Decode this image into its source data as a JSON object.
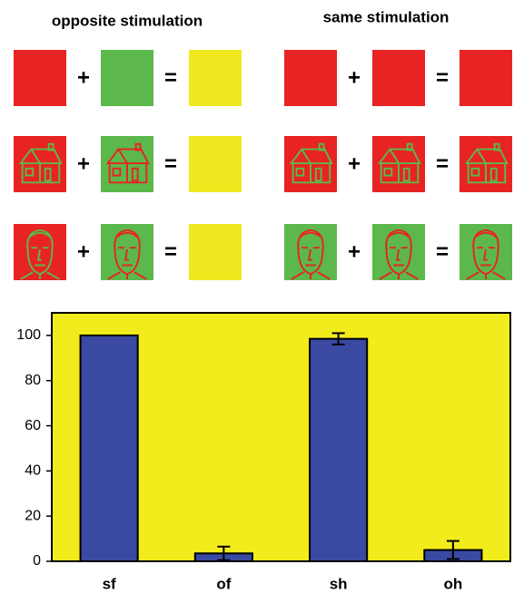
{
  "diagram": {
    "titles": [
      "opposite stimulation",
      "same stimulation"
    ],
    "plus": "+",
    "equals": "="
  },
  "chart_data": {
    "type": "bar",
    "categories": [
      "sf",
      "of",
      "sh",
      "oh"
    ],
    "values": [
      100,
      3.5,
      98.5,
      5
    ],
    "errors": [
      0,
      3,
      2.5,
      4
    ],
    "color": "#3a4aa2",
    "background": "#f2ec1c",
    "ylim": [
      0,
      110
    ],
    "yticks": [
      0,
      20,
      40,
      60,
      80,
      100
    ]
  }
}
